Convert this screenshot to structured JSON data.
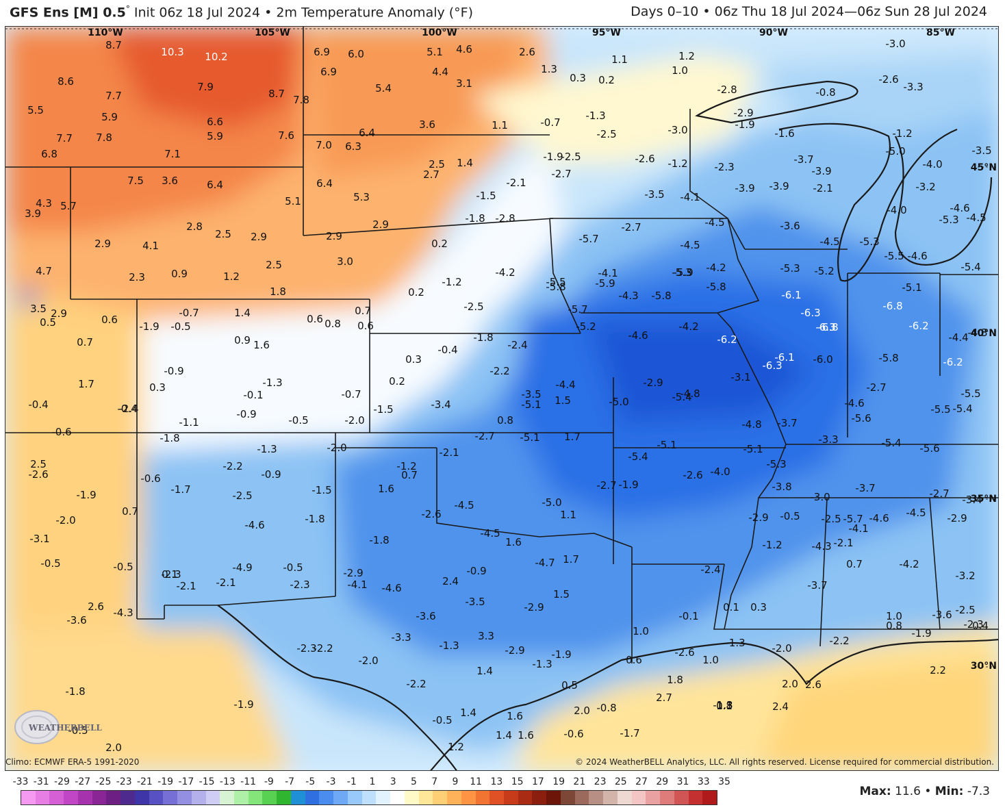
{
  "header": {
    "model": "GFS Ens [M] 0.5",
    "degree_sign": "°",
    "init": "Init 06z 18 Jul 2024",
    "bullet": "•",
    "field": "2m Temperature Anomaly (°F)",
    "period": "Days 0–10 • 06z Thu 18 Jul 2024—06z Sun 28 Jul 2024"
  },
  "footer": {
    "climo": "Climo: ECMWF ERA-5 1991-2020",
    "copyright": "© 2024 WeatherBELL Analytics, LLC. All rights reserved. License required for commercial distribution.",
    "max_label": "Max:",
    "max_value": "11.6",
    "min_label": "Min:",
    "min_value": "-7.3",
    "logo_text": "WEATHERBELL"
  },
  "scale": {
    "ticks": [
      "-33",
      "-31",
      "-29",
      "-27",
      "-25",
      "-23",
      "-21",
      "-19",
      "-17",
      "-15",
      "-13",
      "-11",
      "-9",
      "-7",
      "-5",
      "-3",
      "-1",
      "1",
      "3",
      "5",
      "7",
      "9",
      "11",
      "13",
      "15",
      "17",
      "19",
      "21",
      "23",
      "25",
      "27",
      "29",
      "31",
      "33",
      "35"
    ],
    "colors": [
      "#f59af0",
      "#e77ee3",
      "#d560d6",
      "#c046c6",
      "#a632ae",
      "#8a2596",
      "#6d1f84",
      "#4f2a8e",
      "#3d35a8",
      "#5751c4",
      "#7670d6",
      "#958fe2",
      "#b3b0ec",
      "#cfcdf3",
      "#d7f3d4",
      "#aef0a7",
      "#84e57a",
      "#58d153",
      "#2fb52f",
      "#1f8fd6",
      "#2f6fe0",
      "#4b8cef",
      "#6fa9f5",
      "#99c8fb",
      "#bfe0fd",
      "#e2f2fe",
      "#ffffff",
      "#fff9c8",
      "#ffe79a",
      "#ffcf75",
      "#ffb25a",
      "#ff9444",
      "#f27433",
      "#e05225",
      "#c73a1a",
      "#aa2b14",
      "#8b1e0e",
      "#6e150a",
      "#7d4738",
      "#9b6a5c",
      "#b78f84",
      "#d3b4ab",
      "#eed8d2",
      "#f3c5c5",
      "#e9a1a1",
      "#de7b7b",
      "#d25555",
      "#c43030",
      "#b01a1a"
    ]
  },
  "longitude_labels": [
    "110°W",
    "105°W",
    "100°W",
    "95°W",
    "90°W",
    "85°W"
  ],
  "latitude_labels": [
    "45°N",
    "40°N",
    "35°N",
    "30°N"
  ],
  "map_values": [
    {
      "t": "8.7",
      "c": "k"
    },
    {
      "t": "10.3",
      "c": "w"
    },
    {
      "t": "10.2",
      "c": "w"
    },
    {
      "t": "6.9",
      "c": "k"
    },
    {
      "t": "6.0",
      "c": "k"
    },
    {
      "t": "5.1",
      "c": "k"
    },
    {
      "t": "4.6",
      "c": "k"
    },
    {
      "t": "2.6",
      "c": "k"
    },
    {
      "t": "8.6",
      "c": "k"
    },
    {
      "t": "7.7",
      "c": "k"
    },
    {
      "t": "7.9",
      "c": "k"
    },
    {
      "t": "8.7",
      "c": "k"
    },
    {
      "t": "7.8",
      "c": "k"
    },
    {
      "t": "6.9",
      "c": "k"
    },
    {
      "t": "4.4",
      "c": "k"
    },
    {
      "t": "3.1",
      "c": "k"
    },
    {
      "t": "5.4",
      "c": "k"
    },
    {
      "t": "5.5",
      "c": "k"
    },
    {
      "t": "5.9",
      "c": "k"
    },
    {
      "t": "6.6",
      "c": "k"
    },
    {
      "t": "5.9",
      "c": "k"
    },
    {
      "t": "7.6",
      "c": "k"
    },
    {
      "t": "7.7",
      "c": "k"
    },
    {
      "t": "7.8",
      "c": "k"
    },
    {
      "t": "7.0",
      "c": "k"
    },
    {
      "t": "6.3",
      "c": "k"
    },
    {
      "t": "6.4",
      "c": "k"
    },
    {
      "t": "3.6",
      "c": "k"
    },
    {
      "t": "1.1",
      "c": "k"
    },
    {
      "t": "6.8",
      "c": "k"
    },
    {
      "t": "7.1",
      "c": "k"
    },
    {
      "t": "2.5",
      "c": "k"
    },
    {
      "t": "2.7",
      "c": "k"
    },
    {
      "t": "1.4",
      "c": "k"
    },
    {
      "t": "7.5",
      "c": "k"
    },
    {
      "t": "3.6",
      "c": "k"
    },
    {
      "t": "6.4",
      "c": "k"
    },
    {
      "t": "6.4",
      "c": "k"
    },
    {
      "t": "5.1",
      "c": "k"
    },
    {
      "t": "5.3",
      "c": "k"
    },
    {
      "t": "4.3",
      "c": "k"
    },
    {
      "t": "5.7",
      "c": "k"
    },
    {
      "t": "3.9",
      "c": "k"
    },
    {
      "t": "2.8",
      "c": "k"
    },
    {
      "t": "2.5",
      "c": "k"
    },
    {
      "t": "2.9",
      "c": "k"
    },
    {
      "t": "2.9",
      "c": "k"
    },
    {
      "t": "4.1",
      "c": "k"
    },
    {
      "t": "2.9",
      "c": "k"
    },
    {
      "t": "3.0",
      "c": "k"
    },
    {
      "t": "2.9",
      "c": "k"
    },
    {
      "t": "2.5",
      "c": "k"
    },
    {
      "t": "4.7",
      "c": "k"
    },
    {
      "t": "2.3",
      "c": "k"
    },
    {
      "t": "0.9",
      "c": "k"
    },
    {
      "t": "1.2",
      "c": "k"
    },
    {
      "t": "1.8",
      "c": "k"
    },
    {
      "t": "1.3",
      "c": "k"
    },
    {
      "t": "0.3",
      "c": "k"
    },
    {
      "t": "0.2",
      "c": "k"
    },
    {
      "t": "1.1",
      "c": "k"
    },
    {
      "t": "1.2",
      "c": "k"
    },
    {
      "t": "1.0",
      "c": "k"
    },
    {
      "t": "-0.7",
      "c": "k"
    },
    {
      "t": "-1.3",
      "c": "k"
    },
    {
      "t": "-2.5",
      "c": "k"
    },
    {
      "t": "-1.9",
      "c": "k"
    },
    {
      "t": "-2.5",
      "c": "k"
    },
    {
      "t": "-2.7",
      "c": "k"
    },
    {
      "t": "-2.1",
      "c": "k"
    },
    {
      "t": "-1.5",
      "c": "k"
    },
    {
      "t": "-1.8",
      "c": "k"
    },
    {
      "t": "-2.8",
      "c": "k"
    },
    {
      "t": "0.2",
      "c": "k"
    },
    {
      "t": "-1.2",
      "c": "k"
    },
    {
      "t": "0.2",
      "c": "k"
    },
    {
      "t": "-2.5",
      "c": "k"
    },
    {
      "t": "-4.2",
      "c": "k"
    },
    {
      "t": "3.5",
      "c": "k"
    },
    {
      "t": "2.9",
      "c": "k"
    },
    {
      "t": "0.5",
      "c": "k"
    },
    {
      "t": "0.6",
      "c": "k"
    },
    {
      "t": "-1.9",
      "c": "k"
    },
    {
      "t": "-0.5",
      "c": "k"
    },
    {
      "t": "-0.7",
      "c": "k"
    },
    {
      "t": "1.4",
      "c": "k"
    },
    {
      "t": "0.6",
      "c": "k"
    },
    {
      "t": "0.8",
      "c": "k"
    },
    {
      "t": "0.7",
      "c": "k"
    },
    {
      "t": "0.6",
      "c": "k"
    },
    {
      "t": "0.7",
      "c": "k"
    },
    {
      "t": "0.9",
      "c": "k"
    },
    {
      "t": "1.6",
      "c": "k"
    },
    {
      "t": "-1.8",
      "c": "k"
    },
    {
      "t": "-2.4",
      "c": "k"
    },
    {
      "t": "0.3",
      "c": "k"
    },
    {
      "t": "-0.4",
      "c": "k"
    },
    {
      "t": "-2.2",
      "c": "k"
    },
    {
      "t": "0.2",
      "c": "k"
    },
    {
      "t": "1.7",
      "c": "k"
    },
    {
      "t": "-0.4",
      "c": "k"
    },
    {
      "t": "0.3",
      "c": "k"
    },
    {
      "t": "-0.9",
      "c": "k"
    },
    {
      "t": "-1.3",
      "c": "k"
    },
    {
      "t": "-0.1",
      "c": "k"
    },
    {
      "t": "-0.7",
      "c": "k"
    },
    {
      "t": "-1.5",
      "c": "k"
    },
    {
      "t": "-3.4",
      "c": "k"
    },
    {
      "t": "-3.5",
      "c": "k"
    },
    {
      "t": "-5.1",
      "c": "k"
    },
    {
      "t": "-4.4",
      "c": "k"
    },
    {
      "t": "1.5",
      "c": "k"
    },
    {
      "t": "-0.4",
      "c": "k"
    },
    {
      "t": "-2.4",
      "c": "k"
    },
    {
      "t": "-0.9",
      "c": "k"
    },
    {
      "t": "-1.1",
      "c": "k"
    },
    {
      "t": "-0.5",
      "c": "k"
    },
    {
      "t": "-2.0",
      "c": "k"
    },
    {
      "t": "0.8",
      "c": "k"
    },
    {
      "t": "-0.6",
      "c": "k"
    },
    {
      "t": "-1.8",
      "c": "k"
    },
    {
      "t": "-1.3",
      "c": "k"
    },
    {
      "t": "-2.0",
      "c": "k"
    },
    {
      "t": "-2.1",
      "c": "k"
    },
    {
      "t": "-2.7",
      "c": "k"
    },
    {
      "t": "-5.1",
      "c": "k"
    },
    {
      "t": "1.7",
      "c": "k"
    },
    {
      "t": "2.5",
      "c": "k"
    },
    {
      "t": "-2.6",
      "c": "k"
    },
    {
      "t": "-2.2",
      "c": "k"
    },
    {
      "t": "-0.9",
      "c": "k"
    },
    {
      "t": "-1.2",
      "c": "k"
    },
    {
      "t": "0.7",
      "c": "k"
    },
    {
      "t": "-0.6",
      "c": "k"
    },
    {
      "t": "-1.7",
      "c": "k"
    },
    {
      "t": "-1.5",
      "c": "k"
    },
    {
      "t": "1.6",
      "c": "k"
    },
    {
      "t": "-1.9",
      "c": "k"
    },
    {
      "t": "-2.5",
      "c": "k"
    },
    {
      "t": "-2.6",
      "c": "k"
    },
    {
      "t": "-4.5",
      "c": "k"
    },
    {
      "t": "-5.0",
      "c": "k"
    },
    {
      "t": "1.1",
      "c": "k"
    },
    {
      "t": "0.7",
      "c": "k"
    },
    {
      "t": "-2.0",
      "c": "k"
    },
    {
      "t": "-1.8",
      "c": "k"
    },
    {
      "t": "-4.6",
      "c": "k"
    },
    {
      "t": "-4.5",
      "c": "k"
    },
    {
      "t": "1.6",
      "c": "k"
    },
    {
      "t": "-3.1",
      "c": "k"
    },
    {
      "t": "-1.8",
      "c": "k"
    },
    {
      "t": "-4.7",
      "c": "k"
    },
    {
      "t": "1.7",
      "c": "k"
    },
    {
      "t": "-0.5",
      "c": "k"
    },
    {
      "t": "-0.5",
      "c": "k"
    },
    {
      "t": "-2.3",
      "c": "k"
    },
    {
      "t": "-4.9",
      "c": "k"
    },
    {
      "t": "-0.5",
      "c": "k"
    },
    {
      "t": "-0.9",
      "c": "k"
    },
    {
      "t": "0.1",
      "c": "k"
    },
    {
      "t": "-2.1",
      "c": "k"
    },
    {
      "t": "-2.1",
      "c": "k"
    },
    {
      "t": "-2.3",
      "c": "k"
    },
    {
      "t": "-2.9",
      "c": "k"
    },
    {
      "t": "-4.1",
      "c": "k"
    },
    {
      "t": "-4.6",
      "c": "k"
    },
    {
      "t": "2.4",
      "c": "k"
    },
    {
      "t": "1.5",
      "c": "k"
    },
    {
      "t": "2.6",
      "c": "k"
    },
    {
      "t": "-4.3",
      "c": "k"
    },
    {
      "t": "-3.6",
      "c": "k"
    },
    {
      "t": "-3.5",
      "c": "k"
    },
    {
      "t": "-2.9",
      "c": "k"
    },
    {
      "t": "-3.6",
      "c": "k"
    },
    {
      "t": "-3.3",
      "c": "k"
    },
    {
      "t": "-1.3",
      "c": "k"
    },
    {
      "t": "3.3",
      "c": "k"
    },
    {
      "t": "-2.3",
      "c": "k"
    },
    {
      "t": "-2.2",
      "c": "k"
    },
    {
      "t": "-2.9",
      "c": "k"
    },
    {
      "t": "-1.3",
      "c": "k"
    },
    {
      "t": "-1.9",
      "c": "k"
    },
    {
      "t": "-2.0",
      "c": "k"
    },
    {
      "t": "-2.2",
      "c": "k"
    },
    {
      "t": "1.4",
      "c": "k"
    },
    {
      "t": "0.5",
      "c": "k"
    },
    {
      "t": "-1.8",
      "c": "k"
    },
    {
      "t": "-1.9",
      "c": "k"
    },
    {
      "t": "-0.5",
      "c": "k"
    },
    {
      "t": "1.4",
      "c": "k"
    },
    {
      "t": "1.6",
      "c": "k"
    },
    {
      "t": "2.0",
      "c": "k"
    },
    {
      "t": "-0.8",
      "c": "k"
    },
    {
      "t": "0.1",
      "c": "k"
    },
    {
      "t": "1.2",
      "c": "k"
    },
    {
      "t": "1.4",
      "c": "k"
    },
    {
      "t": "1.6",
      "c": "k"
    },
    {
      "t": "-0.6",
      "c": "k"
    },
    {
      "t": "-1.7",
      "c": "k"
    },
    {
      "t": "2.0",
      "c": "k"
    },
    {
      "t": "-0.5",
      "c": "k"
    },
    {
      "t": "-1.3",
      "c": "k"
    },
    {
      "t": "-1.6",
      "c": "k"
    },
    {
      "t": "-3.0",
      "c": "k"
    },
    {
      "t": "-2.6",
      "c": "k"
    },
    {
      "t": "-3.3",
      "c": "k"
    },
    {
      "t": "-2.8",
      "c": "k"
    },
    {
      "t": "-0.8",
      "c": "k"
    },
    {
      "t": "-2.9",
      "c": "k"
    },
    {
      "t": "-1.9",
      "c": "k"
    },
    {
      "t": "-1.6",
      "c": "k"
    },
    {
      "t": "-3.0",
      "c": "k"
    },
    {
      "t": "-1.2",
      "c": "k"
    },
    {
      "t": "-3.5",
      "c": "k"
    },
    {
      "t": "-2.6",
      "c": "k"
    },
    {
      "t": "-1.2",
      "c": "k"
    },
    {
      "t": "-2.3",
      "c": "k"
    },
    {
      "t": "-3.7",
      "c": "k"
    },
    {
      "t": "-5.0",
      "c": "k"
    },
    {
      "t": "-4.0",
      "c": "k"
    },
    {
      "t": "-3.9",
      "c": "k"
    },
    {
      "t": "-2.1",
      "c": "k"
    },
    {
      "t": "-3.9",
      "c": "k"
    },
    {
      "t": "-3.9",
      "c": "k"
    },
    {
      "t": "-3.2",
      "c": "k"
    },
    {
      "t": "-3.5",
      "c": "k"
    },
    {
      "t": "-4.1",
      "c": "k"
    },
    {
      "t": "-4.0",
      "c": "k"
    },
    {
      "t": "-4.6",
      "c": "k"
    },
    {
      "t": "-5.3",
      "c": "k"
    },
    {
      "t": "-4.5",
      "c": "k"
    },
    {
      "t": "-4.5",
      "c": "k"
    },
    {
      "t": "-3.6",
      "c": "k"
    },
    {
      "t": "-5.7",
      "c": "k"
    },
    {
      "t": "-2.7",
      "c": "k"
    },
    {
      "t": "-4.5",
      "c": "k"
    },
    {
      "t": "-4.5",
      "c": "k"
    },
    {
      "t": "-5.3",
      "c": "k"
    },
    {
      "t": "-5.5",
      "c": "k"
    },
    {
      "t": "-4.6",
      "c": "k"
    },
    {
      "t": "-4.2",
      "c": "k"
    },
    {
      "t": "-5.3",
      "c": "k"
    },
    {
      "t": "-5.3",
      "c": "k"
    },
    {
      "t": "-5.2",
      "c": "k"
    },
    {
      "t": "-5.4",
      "c": "k"
    },
    {
      "t": "-5.5",
      "c": "k"
    },
    {
      "t": "-5.8",
      "c": "k"
    },
    {
      "t": "-4.1",
      "c": "k"
    },
    {
      "t": "-5.9",
      "c": "k"
    },
    {
      "t": "-5.9",
      "c": "k"
    },
    {
      "t": "-5.8",
      "c": "k"
    },
    {
      "t": "-5.1",
      "c": "k"
    },
    {
      "t": "-4.3",
      "c": "k"
    },
    {
      "t": "-5.8",
      "c": "k"
    },
    {
      "t": "-5.7",
      "c": "k"
    },
    {
      "t": "-6.1",
      "c": "w"
    },
    {
      "t": "-6.8",
      "c": "w"
    },
    {
      "t": "-6.3",
      "c": "w"
    },
    {
      "t": "-6.8",
      "c": "w"
    },
    {
      "t": "-5.2",
      "c": "k"
    },
    {
      "t": "-4.6",
      "c": "k"
    },
    {
      "t": "-4.2",
      "c": "k"
    },
    {
      "t": "-6.2",
      "c": "w"
    },
    {
      "t": "-6.3",
      "c": "w"
    },
    {
      "t": "-6.2",
      "c": "w"
    },
    {
      "t": "-4.3",
      "c": "k"
    },
    {
      "t": "-4.4",
      "c": "k"
    },
    {
      "t": "-6.1",
      "c": "w"
    },
    {
      "t": "-6.3",
      "c": "w"
    },
    {
      "t": "-6.0",
      "c": "k"
    },
    {
      "t": "-5.8",
      "c": "k"
    },
    {
      "t": "-6.2",
      "c": "w"
    },
    {
      "t": "-5.0",
      "c": "k"
    },
    {
      "t": "-2.9",
      "c": "k"
    },
    {
      "t": "-4.8",
      "c": "k"
    },
    {
      "t": "-5.4",
      "c": "k"
    },
    {
      "t": "-3.1",
      "c": "k"
    },
    {
      "t": "-2.7",
      "c": "k"
    },
    {
      "t": "-5.5",
      "c": "k"
    },
    {
      "t": "-4.6",
      "c": "k"
    },
    {
      "t": "-5.6",
      "c": "k"
    },
    {
      "t": "-5.5",
      "c": "k"
    },
    {
      "t": "-5.4",
      "c": "k"
    },
    {
      "t": "-4.8",
      "c": "k"
    },
    {
      "t": "-3.7",
      "c": "k"
    },
    {
      "t": "-5.1",
      "c": "k"
    },
    {
      "t": "-5.1",
      "c": "k"
    },
    {
      "t": "-3.3",
      "c": "k"
    },
    {
      "t": "-5.4",
      "c": "k"
    },
    {
      "t": "-5.6",
      "c": "k"
    },
    {
      "t": "-5.4",
      "c": "k"
    },
    {
      "t": "-5.3",
      "c": "k"
    },
    {
      "t": "-2.6",
      "c": "k"
    },
    {
      "t": "-4.0",
      "c": "k"
    },
    {
      "t": "-2.7",
      "c": "k"
    },
    {
      "t": "-1.9",
      "c": "k"
    },
    {
      "t": "-3.8",
      "c": "k"
    },
    {
      "t": "-3.7",
      "c": "k"
    },
    {
      "t": "-2.7",
      "c": "k"
    },
    {
      "t": "-3.4",
      "c": "k"
    },
    {
      "t": "-3.0",
      "c": "k"
    },
    {
      "t": "-2.9",
      "c": "k"
    },
    {
      "t": "-0.5",
      "c": "k"
    },
    {
      "t": "-5.7",
      "c": "k"
    },
    {
      "t": "-4.6",
      "c": "k"
    },
    {
      "t": "-4.5",
      "c": "k"
    },
    {
      "t": "-2.9",
      "c": "k"
    },
    {
      "t": "-2.5",
      "c": "k"
    },
    {
      "t": "-4.1",
      "c": "k"
    },
    {
      "t": "-2.1",
      "c": "k"
    },
    {
      "t": "-1.2",
      "c": "k"
    },
    {
      "t": "-4.3",
      "c": "k"
    },
    {
      "t": "-2.4",
      "c": "k"
    },
    {
      "t": "0.7",
      "c": "k"
    },
    {
      "t": "-4.2",
      "c": "k"
    },
    {
      "t": "-3.7",
      "c": "k"
    },
    {
      "t": "-3.2",
      "c": "k"
    },
    {
      "t": "-2.3",
      "c": "k"
    },
    {
      "t": "-0.1",
      "c": "k"
    },
    {
      "t": "0.1",
      "c": "k"
    },
    {
      "t": "0.3",
      "c": "k"
    },
    {
      "t": "1.0",
      "c": "k"
    },
    {
      "t": "0.8",
      "c": "k"
    },
    {
      "t": "-3.6",
      "c": "k"
    },
    {
      "t": "-2.5",
      "c": "k"
    },
    {
      "t": "0.4",
      "c": "k"
    },
    {
      "t": "1.0",
      "c": "k"
    },
    {
      "t": "-1.3",
      "c": "k"
    },
    {
      "t": "-2.2",
      "c": "k"
    },
    {
      "t": "-1.9",
      "c": "k"
    },
    {
      "t": "0.6",
      "c": "k"
    },
    {
      "t": "-2.6",
      "c": "k"
    },
    {
      "t": "1.0",
      "c": "k"
    },
    {
      "t": "-2.0",
      "c": "k"
    },
    {
      "t": "2.2",
      "c": "k"
    },
    {
      "t": "1.8",
      "c": "k"
    },
    {
      "t": "2.0",
      "c": "k"
    },
    {
      "t": "2.6",
      "c": "k"
    },
    {
      "t": "2.7",
      "c": "k"
    },
    {
      "t": "1.8",
      "c": "k"
    },
    {
      "t": "2.4",
      "c": "k"
    }
  ]
}
